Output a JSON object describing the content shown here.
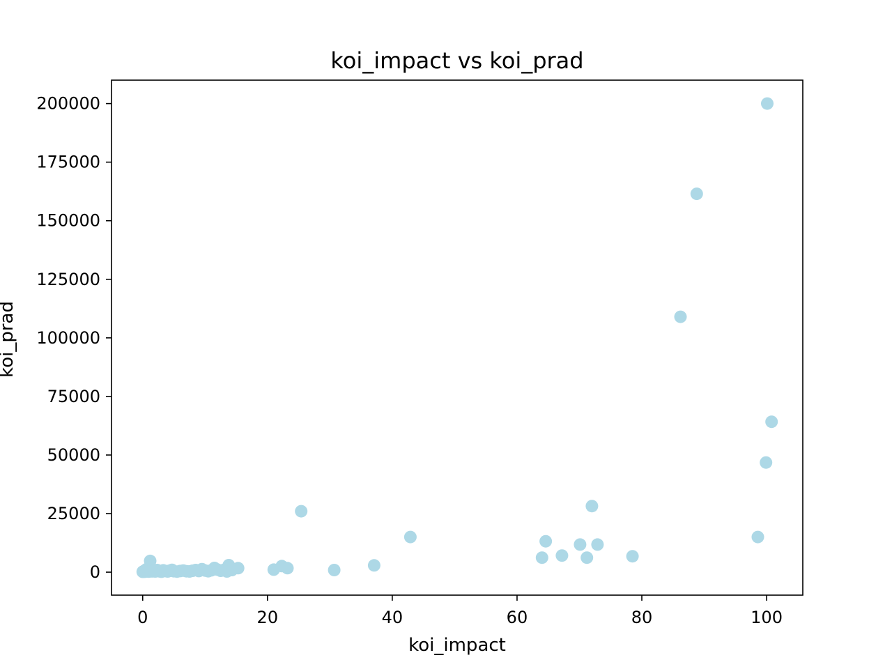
{
  "chart_data": {
    "type": "scatter",
    "title": "koi_impact vs koi_prad",
    "xlabel": "koi_impact",
    "ylabel": "koi_prad",
    "xlim": [
      -5,
      105.8
    ],
    "ylim": [
      -9800,
      210000
    ],
    "x_ticks": [
      0,
      20,
      40,
      60,
      80,
      100
    ],
    "y_ticks": [
      0,
      25000,
      50000,
      75000,
      100000,
      125000,
      150000,
      175000,
      200000
    ],
    "grid": false,
    "legend": "none",
    "marker_color": "#add8e6",
    "series": [
      {
        "points": [
          [
            0.0,
            150
          ],
          [
            0.1,
            300
          ],
          [
            0.2,
            500
          ],
          [
            0.3,
            200
          ],
          [
            0.4,
            800
          ],
          [
            0.5,
            400
          ],
          [
            0.6,
            1200
          ],
          [
            0.7,
            300
          ],
          [
            0.8,
            600
          ],
          [
            0.9,
            900
          ],
          [
            1.0,
            250
          ],
          [
            1.1,
            1500
          ],
          [
            1.2,
            4800
          ],
          [
            1.3,
            700
          ],
          [
            1.5,
            350
          ],
          [
            1.8,
            500
          ],
          [
            2.0,
            300
          ],
          [
            2.3,
            900
          ],
          [
            2.6,
            400
          ],
          [
            3.0,
            200
          ],
          [
            3.3,
            800
          ],
          [
            3.6,
            500
          ],
          [
            4.0,
            300
          ],
          [
            4.3,
            600
          ],
          [
            4.7,
            1000
          ],
          [
            5.0,
            400
          ],
          [
            5.5,
            250
          ],
          [
            6.0,
            500
          ],
          [
            6.5,
            700
          ],
          [
            7.0,
            400
          ],
          [
            7.5,
            300
          ],
          [
            8.0,
            600
          ],
          [
            8.5,
            900
          ],
          [
            9.0,
            500
          ],
          [
            9.5,
            1300
          ],
          [
            10.0,
            700
          ],
          [
            10.5,
            400
          ],
          [
            11.0,
            800
          ],
          [
            11.5,
            1800
          ],
          [
            12.0,
            1100
          ],
          [
            12.5,
            600
          ],
          [
            13.0,
            1000
          ],
          [
            13.5,
            300
          ],
          [
            13.8,
            3000
          ],
          [
            14.3,
            900
          ],
          [
            15.3,
            1700
          ],
          [
            21.0,
            1100
          ],
          [
            22.3,
            2600
          ],
          [
            23.2,
            1700
          ],
          [
            25.4,
            26000
          ],
          [
            30.7,
            900
          ],
          [
            37.1,
            2900
          ],
          [
            42.9,
            15000
          ],
          [
            64.0,
            6200
          ],
          [
            64.6,
            13200
          ],
          [
            67.2,
            7100
          ],
          [
            70.1,
            11800
          ],
          [
            71.2,
            6200
          ],
          [
            72.0,
            28200
          ],
          [
            72.9,
            11800
          ],
          [
            78.5,
            6800
          ],
          [
            86.2,
            109000
          ],
          [
            88.8,
            161500
          ],
          [
            98.6,
            15000
          ],
          [
            99.9,
            46800
          ],
          [
            100.1,
            200000
          ],
          [
            100.8,
            64200
          ]
        ]
      }
    ]
  }
}
